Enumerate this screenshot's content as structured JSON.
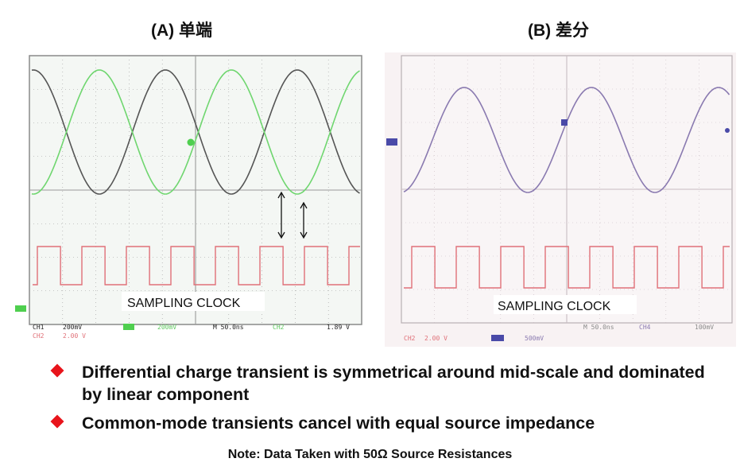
{
  "panels": {
    "a": {
      "title": "(A) 单端",
      "clock_label": "SAMPLING CLOCK",
      "status": {
        "ch1": "CH1",
        "ch1_scale": "200mV",
        "ch2": "CH2",
        "ch2_scale": "2.00 V",
        "timebase": "M 50.0ns",
        "trigger_source": "CH2",
        "trigger_level": "1.89 V"
      }
    },
    "b": {
      "title": "(B) 差分",
      "clock_label": "SAMPLING CLOCK",
      "status": {
        "ch2": "CH2",
        "ch2_scale": "2.00 V",
        "math_scale": "500mV",
        "timebase": "M 50.0ns",
        "trigger_source": "CH4",
        "trigger_level": "100mV"
      }
    }
  },
  "bullets": [
    "Differential charge transient is symmetrical around mid-scale and dominated by linear component",
    "Common-mode transients cancel with equal source impedance"
  ],
  "note": "Note: Data Taken with 50Ω Source Resistances",
  "colors": {
    "grid": "#8a8a8a",
    "trace_gray": "#555555",
    "trace_green": "#6fd66f",
    "trace_red": "#e07078",
    "trace_purple": "#8a7ab0",
    "bullet": "#e8141b"
  }
}
